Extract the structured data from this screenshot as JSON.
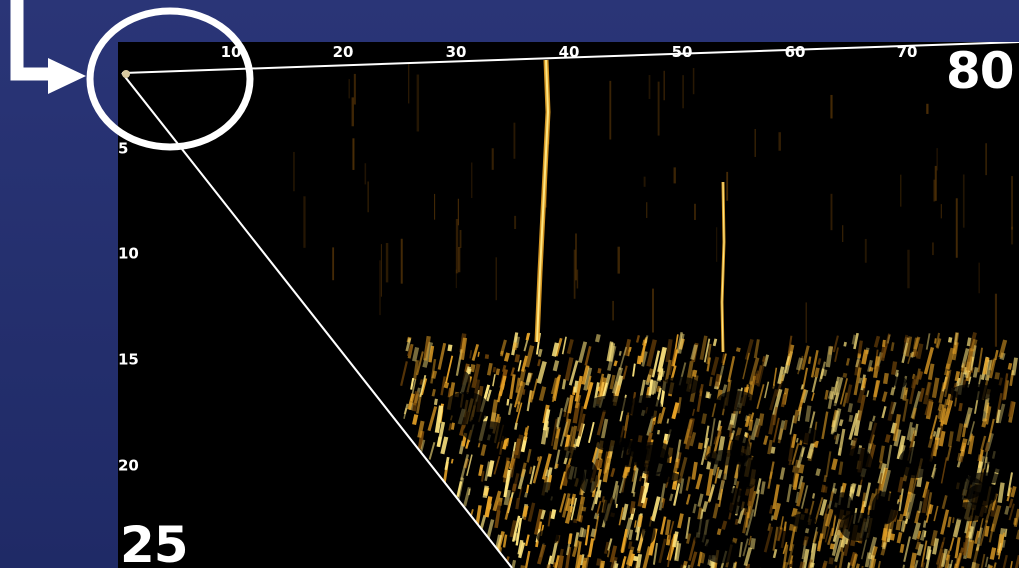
{
  "sonar_view": {
    "top_scale_labels": [
      "10",
      "20",
      "30",
      "40",
      "50",
      "60",
      "70"
    ],
    "top_scale_max_label": "80",
    "side_scale_labels": [
      "5",
      "10",
      "15",
      "20"
    ],
    "side_scale_max_label": "25",
    "colors": {
      "panel_background": "#000000",
      "page_background": "#26316f",
      "returns_bright": "#ffe680",
      "returns_mid": "#e8a326",
      "returns_dark": "#7a4a0a",
      "guide_lines": "#ffffff"
    }
  },
  "annotation": {
    "highlight": "circle-around-origin",
    "pointer": "arrow-pointing-right",
    "color": "#ffffff"
  }
}
